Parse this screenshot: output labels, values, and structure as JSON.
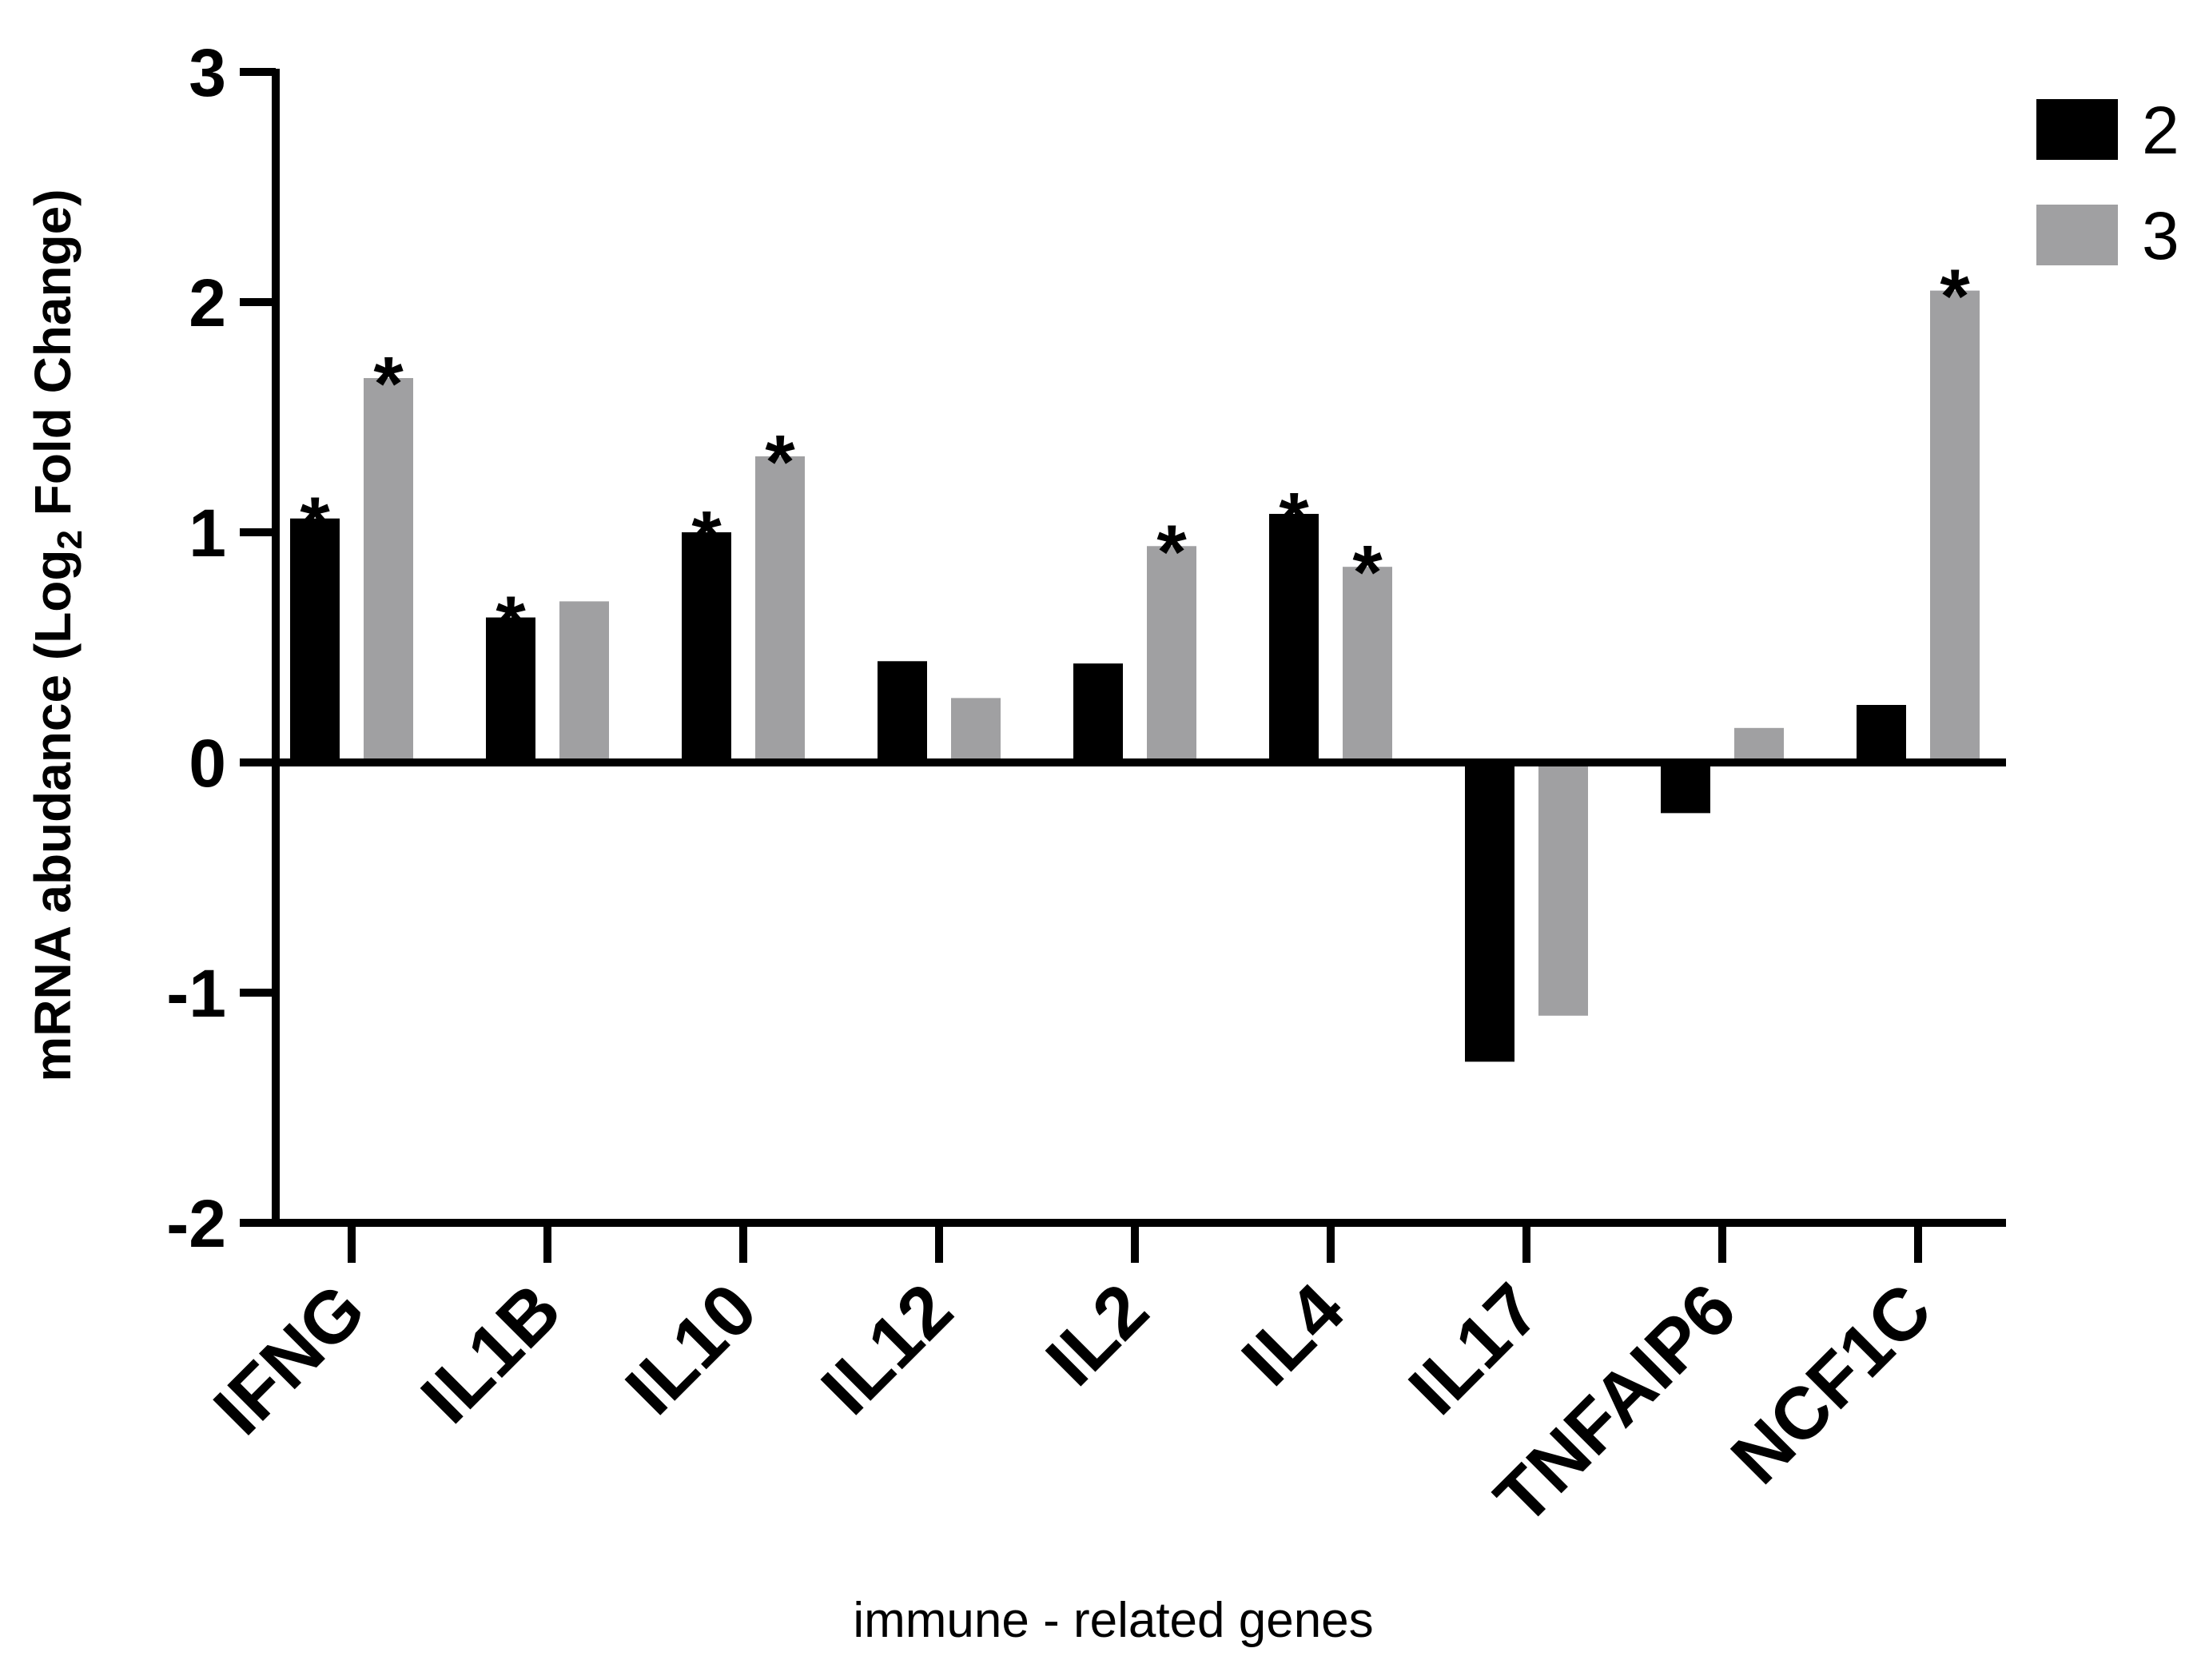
{
  "chart_data": {
    "type": "bar",
    "title": "",
    "xlabel": "immune - related genes",
    "ylabel": {
      "prefix": "mRNA abudance (Log",
      "subscript": "2",
      "suffix": " Fold Change)"
    },
    "ylim": [
      -2,
      3
    ],
    "yticks": [
      "-2",
      "-1",
      "0",
      "1",
      "2",
      "3"
    ],
    "categories": [
      "IFNG",
      "IL1B",
      "IL10",
      "IL12",
      "IL2",
      "IL4",
      "IL17",
      "TNFAIP6",
      "NCF1C"
    ],
    "series": [
      {
        "name": "2",
        "color": "#000000",
        "values": [
          1.06,
          0.63,
          1.0,
          0.44,
          0.43,
          1.08,
          -1.3,
          -0.22,
          0.25
        ],
        "significant": [
          true,
          true,
          true,
          false,
          false,
          true,
          false,
          false,
          false
        ]
      },
      {
        "name": "3",
        "color": "#a0a0a2",
        "values": [
          1.67,
          0.7,
          1.33,
          0.28,
          0.94,
          0.85,
          -1.1,
          0.15,
          2.05
        ],
        "significant": [
          true,
          false,
          true,
          false,
          true,
          true,
          false,
          false,
          true
        ]
      }
    ],
    "significance_marker": "*",
    "legend_position": "top-right"
  }
}
